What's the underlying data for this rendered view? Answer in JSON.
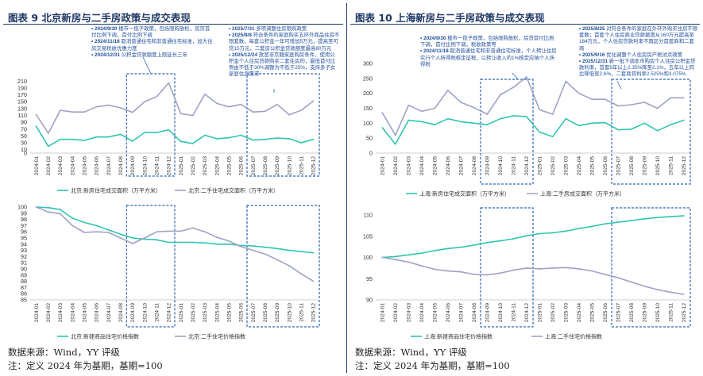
{
  "colors": {
    "new_series": "#2ec5b2",
    "second_series": "#9ea3c4",
    "title": "#1f3864",
    "annot": "#2f63b5",
    "note_text": "#1f4e9a"
  },
  "left": {
    "title": "图表 9 北京新房与二手房政策与成交表现",
    "source": "数据来源：Wind，YY 评级",
    "note": "注：定义 2024 年为基期，基期=100",
    "notes": [
      {
        "date": "2024/9/30",
        "text": "楼市一揽子政策，包括限购放松，房贷首付比例下调，首付比例下调"
      },
      {
        "date": "2024/11/18",
        "text": "取消普通住宅和非普通住宅标准，加大住房交易税收优惠力度"
      },
      {
        "date": "2024/12/31",
        "text": "公积金贷款额度上限延长三年"
      },
      {
        "date": "2025/7/31",
        "text": "多项调整住房限购政策"
      },
      {
        "date": "2025/8/8",
        "text": "符合条件的家庭购买五环外商品住房不限套数，每套公积金一年可增加5万元，提高至可贷15万元，二套房公积金贷款额度最高80万元"
      },
      {
        "date": "2025/12/24",
        "text": "放宽非京籍家庭购房条件，使用公积金个人住房贷款购买二套住房的，最低首付比例由不低于30%调整为不低于25%，支持多子女家庭住房需求"
      }
    ],
    "chart_data": [
      {
        "type": "line",
        "categories": [
          "2024-01",
          "2024-02",
          "2024-03",
          "2024-04",
          "2024-05",
          "2024-06",
          "2024-07",
          "2024-08",
          "2024-09",
          "2024-10",
          "2024-11",
          "2024-12",
          "2025-01",
          "2025-02",
          "2025-03",
          "2025-04",
          "2025-05",
          "2025-06",
          "2025-07",
          "2025-08",
          "2025-09",
          "2025-10",
          "2025-11",
          "2025-12"
        ],
        "ylim": [
          0,
          220
        ],
        "yticks": [
          0,
          10,
          30,
          50,
          70,
          90,
          110,
          130,
          150,
          170,
          190,
          210
        ],
        "series": [
          {
            "name": "北京:新房住宅成交面积（万平方米）",
            "values": [
              78,
              20,
              40,
              40,
              37,
              47,
              47,
              55,
              35,
              60,
              60,
              68,
              34,
              28,
              52,
              42,
              45,
              52,
              38,
              40,
              44,
              42,
              30,
              40
            ]
          },
          {
            "name": "北京:二手住宅成交面积（万平方米）",
            "values": [
              112,
              58,
              125,
              120,
              120,
              135,
              140,
              132,
              119,
              150,
              165,
              205,
              115,
              110,
              172,
              145,
              135,
              142,
              120,
              122,
              142,
              112,
              125,
              152
            ]
          }
        ]
      },
      {
        "type": "line",
        "categories": [
          "2024-01",
          "2024-02",
          "2024-03",
          "2024-04",
          "2024-05",
          "2024-06",
          "2024-07",
          "2024-08",
          "2024-09",
          "2024-10",
          "2024-11",
          "2024-12",
          "2025-01",
          "2025-02",
          "2025-03",
          "2025-04",
          "2025-05",
          "2025-06",
          "2025-07",
          "2025-08",
          "2025-09",
          "2025-10",
          "2025-11",
          "2025-12"
        ],
        "ylim": [
          85,
          100
        ],
        "yticks": [
          85,
          86,
          87,
          88,
          89,
          90,
          91,
          92,
          93,
          94,
          95,
          96,
          97,
          98,
          99,
          100
        ],
        "series": [
          {
            "name": "北京:新建商品住宅价格指数",
            "values": [
              100,
              99.9,
              99.6,
              98.2,
              97.5,
              97.0,
              96.3,
              95.6,
              95.0,
              94.8,
              94.7,
              94.3,
              94.3,
              94.3,
              94.2,
              94.0,
              94.0,
              93.8,
              93.7,
              93.5,
              93.3,
              93.0,
              92.8,
              92.6
            ]
          },
          {
            "name": "北京:二手住宅价格指数",
            "values": [
              100,
              99.2,
              98.9,
              97.0,
              95.9,
              96.0,
              95.9,
              95.0,
              94.1,
              95.0,
              96.0,
              96.1,
              96.1,
              96.6,
              96.0,
              95.1,
              94.5,
              93.6,
              93.0,
              92.4,
              91.5,
              90.5,
              89.2,
              88.0
            ]
          }
        ]
      }
    ]
  },
  "right": {
    "title": "图表 10 上海新房与二手房政策与成交表现",
    "source": "数据来源：Wind，YY 评级",
    "note": "注：定义 2024 年为基期，基期=100",
    "notes": [
      {
        "date": "2024/9/30",
        "text": "楼市一揽子政策，包括限购放松，房贷首付比例下调，首付比例下调，税收政策等"
      },
      {
        "date": "2024/11/18",
        "text": "取消普通住宅和非普通住宅标准，个人转让住房实行个人所得税核定征税，以转让收入的1%核定应纳个人所得税"
      },
      {
        "date": "2025/8/25",
        "text": "对符合条件的家庭在外环外购买住房不限套数；首套个人住房商业贷款额度从160万元提高至184万元，个人住房贷款利率不再区分首套商和二套商"
      },
      {
        "date": "2025/9/16",
        "text": "优化调整个人住房房产税试点政策"
      },
      {
        "date": "2025/12/31",
        "text": "新一批下调本市购房个人住房公积金贷款利率，首套5年以上2.35%降至2.1%，五年以上同比降低至2.6%，二套商贷利率2.525%和3.075%"
      }
    ],
    "chart_data": [
      {
        "type": "line",
        "categories": [
          "2024-01",
          "2024-02",
          "2024-03",
          "2024-04",
          "2024-05",
          "2024-06",
          "2024-07",
          "2024-08",
          "2024-09",
          "2024-10",
          "2024-11",
          "2024-12",
          "2025-01",
          "2025-02",
          "2025-03",
          "2025-04",
          "2025-05",
          "2025-06",
          "2025-07",
          "2025-08",
          "2025-09",
          "2025-10",
          "2025-11",
          "2025-12"
        ],
        "ylim": [
          0,
          300
        ],
        "yticks": [
          0,
          50,
          100,
          150,
          200,
          250,
          300
        ],
        "series": [
          {
            "name": "上海:新房住宅成交面积（万平方米）",
            "values": [
              85,
              30,
              110,
              105,
              95,
              115,
              105,
              100,
              95,
              115,
              125,
              122,
              70,
              55,
              115,
              92,
              100,
              102,
              78,
              80,
              100,
              75,
              95,
              110
            ]
          },
          {
            "name": "上海:二手房成交面积（万平方米）",
            "values": [
              135,
              60,
              160,
              140,
              150,
              210,
              170,
              152,
              130,
              195,
              220,
              255,
              145,
              130,
              240,
              200,
              180,
              180,
              158,
              162,
              170,
              150,
              185,
              185
            ]
          }
        ]
      },
      {
        "type": "line",
        "categories": [
          "2024-01",
          "2024-02",
          "2024-03",
          "2024-04",
          "2024-05",
          "2024-06",
          "2024-07",
          "2024-08",
          "2024-09",
          "2024-10",
          "2024-11",
          "2024-12",
          "2025-01",
          "2025-02",
          "2025-03",
          "2025-04",
          "2025-05",
          "2025-06",
          "2025-07",
          "2025-08",
          "2025-09",
          "2025-10",
          "2025-11",
          "2025-12"
        ],
        "ylim": [
          90,
          110
        ],
        "yticks": [
          90,
          95,
          100,
          105,
          110
        ],
        "series": [
          {
            "name": "上海:新建商品住宅价格指数",
            "values": [
              100,
              100.2,
              100.6,
              101.0,
              101.6,
              102.1,
              102.4,
              102.9,
              103.5,
              103.9,
              104.4,
              105.1,
              105.6,
              105.8,
              106.2,
              106.8,
              107.3,
              107.9,
              108.3,
              108.7,
              109.1,
              109.4,
              109.6,
              109.8
            ]
          },
          {
            "name": "上海:二手住宅价格指数",
            "values": [
              100,
              99.5,
              98.9,
              98.0,
              97.2,
              96.8,
              96.6,
              96.0,
              95.9,
              96.3,
              97.0,
              97.5,
              97.3,
              97.5,
              97.6,
              97.3,
              96.8,
              96.0,
              95.2,
              94.2,
              93.2,
              92.4,
              91.8,
              91.3
            ]
          }
        ]
      }
    ]
  }
}
